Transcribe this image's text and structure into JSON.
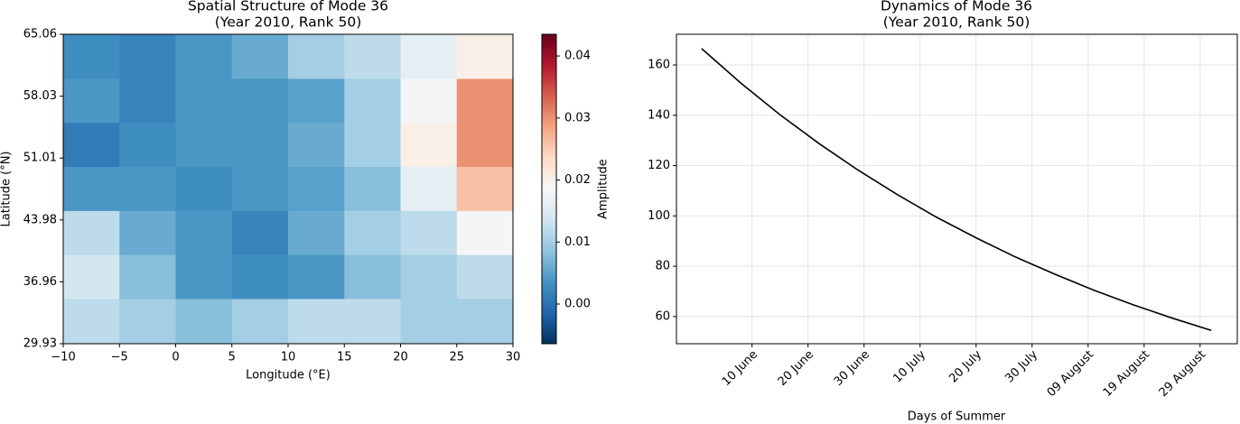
{
  "chart_data": [
    {
      "type": "heatmap",
      "title": "Spatial Structure of Mode 36",
      "subtitle": "(Year 2010, Rank 50)",
      "x_label": "Longitude (°E)",
      "y_label": "Latitude (°N)",
      "colorbar_label": "Amplitude",
      "xlim": [
        -10,
        30
      ],
      "ylim": [
        29.93,
        65.06
      ],
      "xticks": [
        {
          "value": -10,
          "label": "−10"
        },
        {
          "value": -5,
          "label": "−5"
        },
        0,
        5,
        10,
        15,
        20,
        25,
        30
      ],
      "yticks": [
        29.93,
        36.96,
        43.98,
        51.01,
        58.03,
        65.06
      ],
      "clim": [
        -0.0064,
        0.0435
      ],
      "cticks": [
        {
          "value": 0,
          "label": "0.00"
        },
        0.01,
        0.02,
        0.03,
        0.04
      ],
      "lon_edges": [
        -10,
        -5,
        0,
        5,
        10,
        15,
        20,
        25,
        30
      ],
      "lat_edges": [
        65.06,
        60,
        55,
        50,
        45,
        40,
        35,
        29.93
      ],
      "values": [
        [
          0.003,
          0.002,
          0.004,
          0.006,
          0.01,
          0.012,
          0.016,
          0.02
        ],
        [
          0.004,
          0.002,
          0.004,
          0.004,
          0.005,
          0.01,
          0.018,
          0.03
        ],
        [
          0.001,
          0.003,
          0.004,
          0.004,
          0.006,
          0.01,
          0.02,
          0.03
        ],
        [
          0.004,
          0.004,
          0.003,
          0.004,
          0.005,
          0.008,
          0.016,
          0.026
        ],
        [
          0.012,
          0.006,
          0.004,
          0.002,
          0.006,
          0.01,
          0.012,
          0.018
        ],
        [
          0.014,
          0.008,
          0.004,
          0.003,
          0.004,
          0.008,
          0.01,
          0.012
        ],
        [
          0.012,
          0.01,
          0.008,
          0.01,
          0.012,
          0.012,
          0.01,
          0.01
        ]
      ]
    },
    {
      "type": "line",
      "title": "Dynamics of Mode 36",
      "subtitle": "(Year 2010, Rank 50)",
      "x_label": "Days of Summer",
      "color": "#000000",
      "grid": true,
      "x": [
        0,
        7,
        14,
        21,
        28,
        35,
        42,
        49,
        56,
        63,
        70,
        77,
        84,
        91
      ],
      "values": [
        166.5,
        152.8,
        140.2,
        128.7,
        118.1,
        108.4,
        99.4,
        91.3,
        83.7,
        76.9,
        70.5,
        64.7,
        59.4,
        54.5
      ],
      "xlim": [
        -4.5,
        95.8
      ],
      "ylim": [
        49.2,
        172.2
      ],
      "xticks": [
        {
          "value": 9,
          "label": "10 June"
        },
        {
          "value": 19,
          "label": "20 June"
        },
        {
          "value": 29,
          "label": "30 June"
        },
        {
          "value": 39,
          "label": "10 July"
        },
        {
          "value": 49,
          "label": "20 July"
        },
        {
          "value": 59,
          "label": "30 July"
        },
        {
          "value": 69,
          "label": "09 August"
        },
        {
          "value": 79,
          "label": "19 August"
        },
        {
          "value": 89,
          "label": "29 August"
        }
      ],
      "yticks": [
        60,
        80,
        100,
        120,
        140,
        160
      ]
    }
  ]
}
